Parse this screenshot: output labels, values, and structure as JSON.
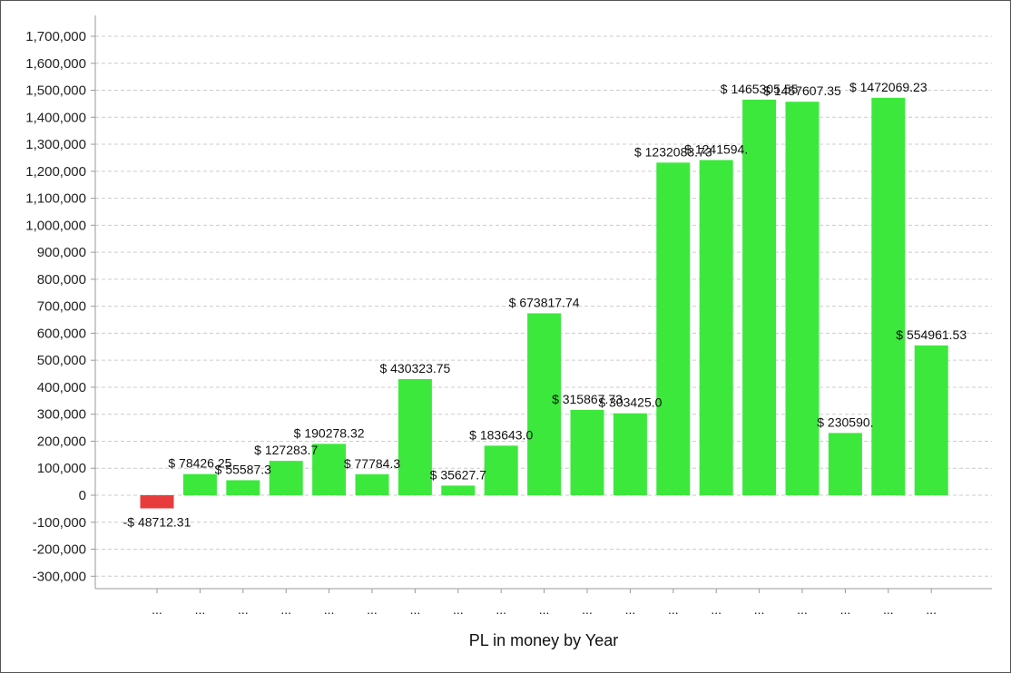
{
  "chart_data": {
    "type": "bar",
    "xlabel": "PL in money by Year",
    "ylabel": "",
    "ylim": [
      -300000,
      1700000
    ],
    "ytick_step": 100000,
    "grid": "horizontal dashed",
    "positive_color": "#3de83d",
    "negative_color": "#e83c3c",
    "categories": [
      "...",
      "...",
      "...",
      "...",
      "...",
      "...",
      "...",
      "...",
      "...",
      "...",
      "...",
      "...",
      "...",
      "...",
      "...",
      "...",
      "...",
      "...",
      "..."
    ],
    "values": [
      -48712.31,
      78426.25,
      55587.3,
      127283.7,
      190278.32,
      77784.3,
      430323.75,
      35627.7,
      183643.0,
      673817.74,
      315867.73,
      303425.0,
      1232083.73,
      1241594.0,
      1465305.55,
      1457607.35,
      230590.0,
      1472069.23,
      554961.53
    ],
    "data_labels": [
      "-$ 48712.31",
      "$ 78426.25",
      "$ 55587.3",
      "$ 127283.7",
      "$ 190278.32",
      "$ 77784.3",
      "$ 430323.75",
      "$ 35627.7",
      "$ 183643.0",
      "$ 673817.74",
      "$ 315867.73",
      "$ 303425.0",
      "$ 1232083.73",
      "$ 1241594.",
      "$ 1465305.55",
      "$ 1457607.35",
      "$ 230590.",
      "$ 1472069.23",
      "$ 554961.53"
    ]
  }
}
